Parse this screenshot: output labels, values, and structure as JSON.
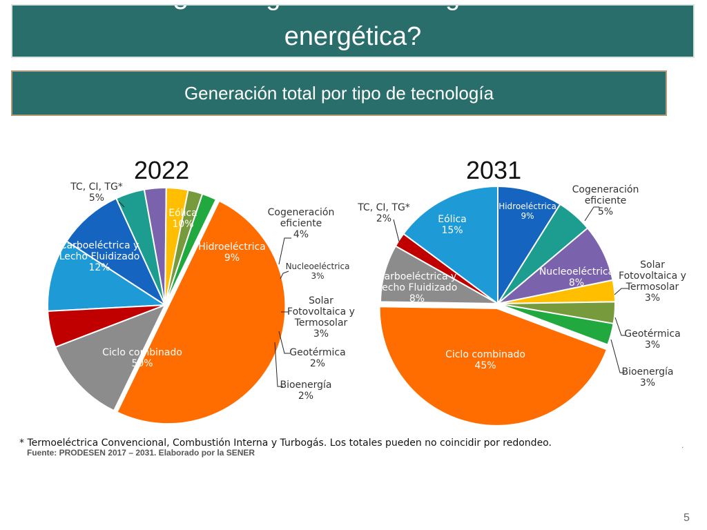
{
  "slide": {
    "title_top": "¿Cómo garantizar la seguridad",
    "title_main": "energética?",
    "subtitle": "Generación total por tipo de tecnología",
    "footnote": "* Termoeléctrica Convencional, Combustión Interna y Turbogás. Los totales pueden no coincidir por redondeo.",
    "dot": ".",
    "source": "Fuente: PRODESEN 2017 – 2031. Elaborado por la SENER",
    "page_number": "5"
  },
  "colors": {
    "Eólica": "#1e9ad6",
    "Hidroeléctrica": "#1565c0",
    "Cogeneración eficiente": "#1c9d90",
    "Nucleoeléctrica": "#7b62ad",
    "Solar Fotovoltaica y Termosolar": "#ffbf00",
    "Geotérmica": "#779a3d",
    "Bioenergía": "#21a83e",
    "Ciclo combinado": "#ff6d00",
    "Carboeléctrica y Lecho Fluidizado": "#8c8c8c",
    "TC, CI, TG*": "#c00000"
  },
  "chart_data": [
    {
      "type": "pie",
      "title": "2022",
      "categories": [
        "Eólica",
        "Hidroeléctrica",
        "Cogeneración eficiente",
        "Nucleoeléctrica",
        "Solar Fotovoltaica y Termosolar",
        "Geotérmica",
        "Bioenergía",
        "Ciclo combinado",
        "Carboeléctrica y Lecho Fluidizado",
        "TC, CI, TG*"
      ],
      "values": [
        10,
        9,
        4,
        3,
        3,
        2,
        2,
        50,
        12,
        5
      ],
      "labels": [
        {
          "lines": [
            "Eólica",
            "10%"
          ],
          "color": "#ffffff"
        },
        {
          "lines": [
            "Hidroeléctrica",
            "9%"
          ],
          "color": "#ffffff"
        },
        {
          "lines": [
            "Cogeneración",
            "eficiente",
            "4%"
          ],
          "color": "#333333"
        },
        {
          "lines": [
            "Nucleoeléctrica",
            "3%"
          ],
          "color": "#333333"
        },
        {
          "lines": [
            "Solar",
            "Fotovoltaica y",
            "Termosolar",
            "3%"
          ],
          "color": "#333333"
        },
        {
          "lines": [
            "Geotérmica",
            "2%"
          ],
          "color": "#333333"
        },
        {
          "lines": [
            "Bioenergía",
            "2%"
          ],
          "color": "#333333"
        },
        {
          "lines": [
            "Ciclo combinado",
            "50%"
          ],
          "color": "#ffffff"
        },
        {
          "lines": [
            "Carboeléctrica y",
            "Lecho Fluidizado",
            "12%"
          ],
          "color": "#ffffff"
        },
        {
          "lines": [
            "TC, CI, TG*",
            "5%"
          ],
          "color": "#333333"
        }
      ]
    },
    {
      "type": "pie",
      "title": "2031",
      "categories": [
        "Hidroeléctrica",
        "Cogeneración eficiente",
        "Nucleoeléctrica",
        "Solar Fotovoltaica y Termosolar",
        "Geotérmica",
        "Bioenergía",
        "Ciclo combinado",
        "Carboeléctrica y Lecho Fluidizado",
        "TC, CI, TG*",
        "Eólica"
      ],
      "values": [
        9,
        5,
        8,
        3,
        3,
        3,
        45,
        8,
        2,
        15
      ],
      "labels": [
        {
          "lines": [
            "Hidroeléctrica",
            "9%"
          ],
          "color": "#ffffff"
        },
        {
          "lines": [
            "Cogeneración",
            "eficiente",
            "5%"
          ],
          "color": "#333333"
        },
        {
          "lines": [
            "Nucleoeléctrica",
            "8%"
          ],
          "color": "#ffffff"
        },
        {
          "lines": [
            "Solar",
            "Fotovoltaica y",
            "Termosolar",
            "3%"
          ],
          "color": "#333333"
        },
        {
          "lines": [
            "Geotérmica",
            "3%"
          ],
          "color": "#333333"
        },
        {
          "lines": [
            "Bioenergía",
            "3%"
          ],
          "color": "#333333"
        },
        {
          "lines": [
            "Ciclo combinado",
            "45%"
          ],
          "color": "#ffffff"
        },
        {
          "lines": [
            "Carboeléctrica y",
            "Lecho Fluidizado",
            "8%"
          ],
          "color": "#ffffff"
        },
        {
          "lines": [
            "TC, CI, TG*",
            "2%"
          ],
          "color": "#333333"
        },
        {
          "lines": [
            "Eólica",
            "15%"
          ],
          "color": "#ffffff"
        }
      ]
    }
  ]
}
